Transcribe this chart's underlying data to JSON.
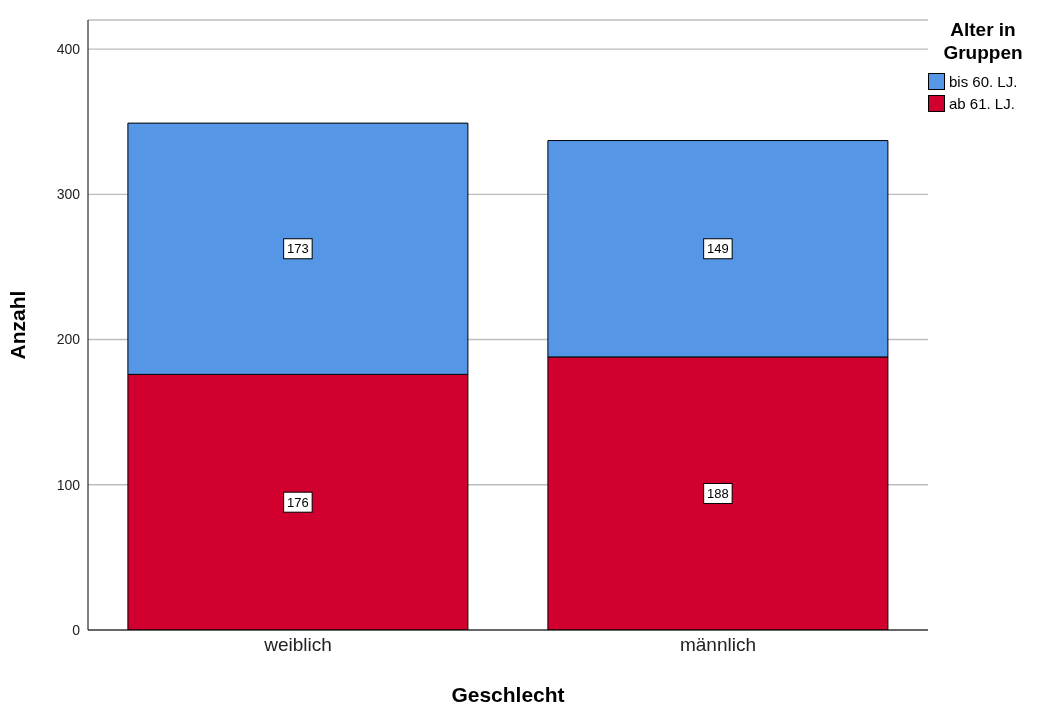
{
  "chart_data": {
    "type": "bar",
    "stacked": true,
    "categories": [
      "weiblich",
      "männlich"
    ],
    "series": [
      {
        "name": "ab 61. LJ.",
        "color": "#d1002f",
        "values": [
          176,
          188
        ]
      },
      {
        "name": "bis 60. LJ.",
        "color": "#5596e6",
        "values": [
          173,
          149
        ]
      }
    ],
    "xlabel": "Geschlecht",
    "ylabel": "Anzahl",
    "legend_title": "Alter in Gruppen",
    "legend": "top right",
    "ylim": [
      0,
      420
    ],
    "yticks": [
      0,
      100,
      200,
      300,
      400
    ],
    "grid": "y",
    "data_labels": true
  }
}
